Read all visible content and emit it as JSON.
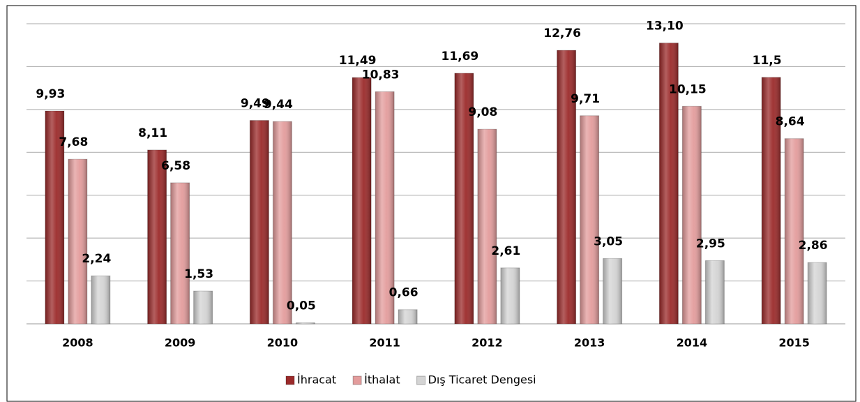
{
  "chart_data": {
    "type": "bar",
    "categories": [
      "2008",
      "2009",
      "2010",
      "2011",
      "2012",
      "2013",
      "2014",
      "2015"
    ],
    "series": [
      {
        "name": "İhracat",
        "color": "#9b2a2a",
        "values": [
          9.93,
          8.11,
          9.49,
          11.49,
          11.69,
          12.76,
          13.1,
          11.5
        ],
        "value_labels": [
          "9,93",
          "8,11",
          "9,49",
          "11,49",
          "11,69",
          "12,76",
          "13,10",
          "11,5"
        ]
      },
      {
        "name": "İthalat",
        "color": "#e39c9c",
        "values": [
          7.68,
          6.58,
          9.44,
          10.83,
          9.08,
          9.71,
          10.15,
          8.64
        ],
        "value_labels": [
          "7,68",
          "6,58",
          "9,44",
          "10,83",
          "9,08",
          "9,71",
          "10,15",
          "8,64"
        ]
      },
      {
        "name": "Dış Ticaret Dengesi",
        "color": "#d4d4d4",
        "values": [
          2.24,
          1.53,
          0.05,
          0.66,
          2.61,
          3.05,
          2.95,
          2.86
        ],
        "value_labels": [
          "2,24",
          "1,53",
          "0,05",
          "0,66",
          "2,61",
          "3,05",
          "2,95",
          "2,86"
        ]
      }
    ],
    "ylim": [
      0,
      14
    ],
    "yticks": [
      0,
      2,
      4,
      6,
      8,
      10,
      12,
      14
    ],
    "grid": true,
    "legend": "bottom"
  }
}
